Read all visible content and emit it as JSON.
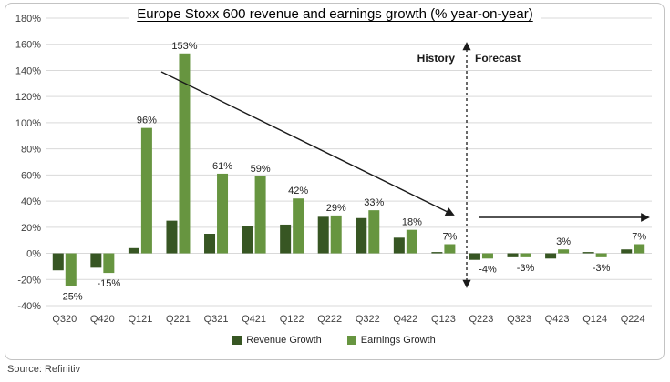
{
  "chart": {
    "title": "Europe Stoxx 600 revenue and earnings growth (% year-on-year)",
    "source": "Source: Refinitiv"
  },
  "chart_data": {
    "type": "bar",
    "title": "Europe Stoxx 600 revenue and earnings growth (% year-on-year)",
    "xlabel": "",
    "ylabel": "",
    "categories": [
      "Q320",
      "Q420",
      "Q121",
      "Q221",
      "Q321",
      "Q421",
      "Q122",
      "Q222",
      "Q322",
      "Q422",
      "Q123",
      "Q223",
      "Q323",
      "Q423",
      "Q124",
      "Q224"
    ],
    "series": [
      {
        "name": "Revenue Growth",
        "color": "#375623",
        "values": [
          -13,
          -11,
          4,
          25,
          15,
          21,
          22,
          28,
          27,
          12,
          1,
          -5,
          -3,
          -4,
          1,
          3
        ]
      },
      {
        "name": "Earnings Growth",
        "color": "#679540",
        "values": [
          -25,
          -15,
          96,
          153,
          61,
          59,
          42,
          29,
          33,
          18,
          7,
          -4,
          -3,
          3,
          -3,
          7
        ],
        "data_labels": [
          "-25%",
          "-15%",
          "96%",
          "153%",
          "61%",
          "59%",
          "42%",
          "29%",
          "33%",
          "18%",
          "7%",
          "-4%",
          "-3%",
          "3%",
          "-3%",
          "7%"
        ]
      }
    ],
    "ylim": [
      -40,
      180
    ],
    "ytick_step": 20,
    "ytick_labels": [
      "180%",
      "160%",
      "140%",
      "120%",
      "100%",
      "80%",
      "60%",
      "40%",
      "20%",
      "0%",
      "-20%",
      "-40%"
    ],
    "grid": true,
    "legend_position": "bottom",
    "annotations": {
      "history_label": "History",
      "forecast_label": "Forecast",
      "divider_between": [
        "Q123",
        "Q223"
      ],
      "trend_arrow": "diagonal arrow sloping down over history bars",
      "forecast_arrow": "flat horizontal arrow over forecast bars"
    },
    "colors": {
      "gridline": "#d9d9d9",
      "axis_text": "#404040",
      "label_text": "#1f1f1f",
      "arrow": "#1a1a1a",
      "frame_border": "#c3c3c3"
    }
  }
}
